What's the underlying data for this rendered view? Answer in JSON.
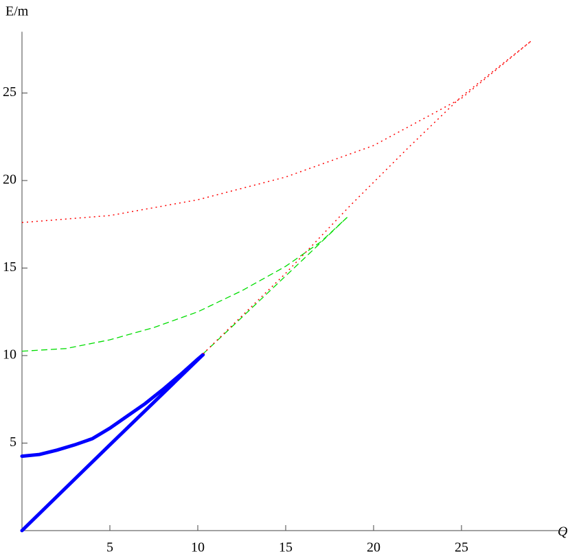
{
  "chart_data": {
    "type": "line",
    "x_label": "Q",
    "y_label": "E/m",
    "xlim": [
      0,
      31
    ],
    "ylim": [
      0,
      28.5
    ],
    "xticks": [
      5,
      10,
      15,
      20,
      25
    ],
    "yticks": [
      5,
      10,
      15,
      20,
      25
    ],
    "grid": false,
    "series": [
      {
        "color": "#0000ff",
        "style": "solid",
        "width": 5,
        "x": [
          0,
          1,
          2,
          3,
          4,
          5,
          6,
          7,
          8,
          9,
          10,
          10.3
        ],
        "values": [
          4.25,
          4.35,
          4.6,
          4.9,
          5.25,
          5.85,
          6.55,
          7.25,
          8.05,
          8.9,
          9.8,
          10.05
        ]
      },
      {
        "color": "#0000ff",
        "style": "solid",
        "width": 5,
        "x": [
          0,
          5,
          10.3
        ],
        "values": [
          0,
          4.9,
          10.05
        ]
      },
      {
        "color": "#00dd00",
        "style": "dashed",
        "width": 1.3,
        "x": [
          0,
          2.5,
          5,
          7.5,
          10,
          12.5,
          15,
          17,
          18.5
        ],
        "values": [
          10.25,
          10.4,
          10.9,
          11.6,
          12.5,
          13.7,
          15.1,
          16.5,
          17.9
        ]
      },
      {
        "color": "#00dd00",
        "style": "dashed",
        "width": 1.3,
        "x": [
          10.3,
          12,
          14,
          16,
          18.5
        ],
        "values": [
          10.1,
          11.7,
          13.6,
          15.5,
          17.9
        ]
      },
      {
        "color": "#ff0000",
        "style": "dotted",
        "width": 1.5,
        "x": [
          0,
          5,
          10,
          15,
          20,
          25,
          29
        ],
        "values": [
          17.6,
          18.0,
          18.9,
          20.2,
          22.0,
          24.7,
          28
        ]
      },
      {
        "color": "#ff0000",
        "style": "dotted",
        "width": 1.5,
        "x": [
          10.3,
          15,
          18.7,
          22,
          25,
          29
        ],
        "values": [
          10.1,
          14.7,
          18.6,
          21.9,
          24.8,
          28
        ]
      }
    ]
  }
}
